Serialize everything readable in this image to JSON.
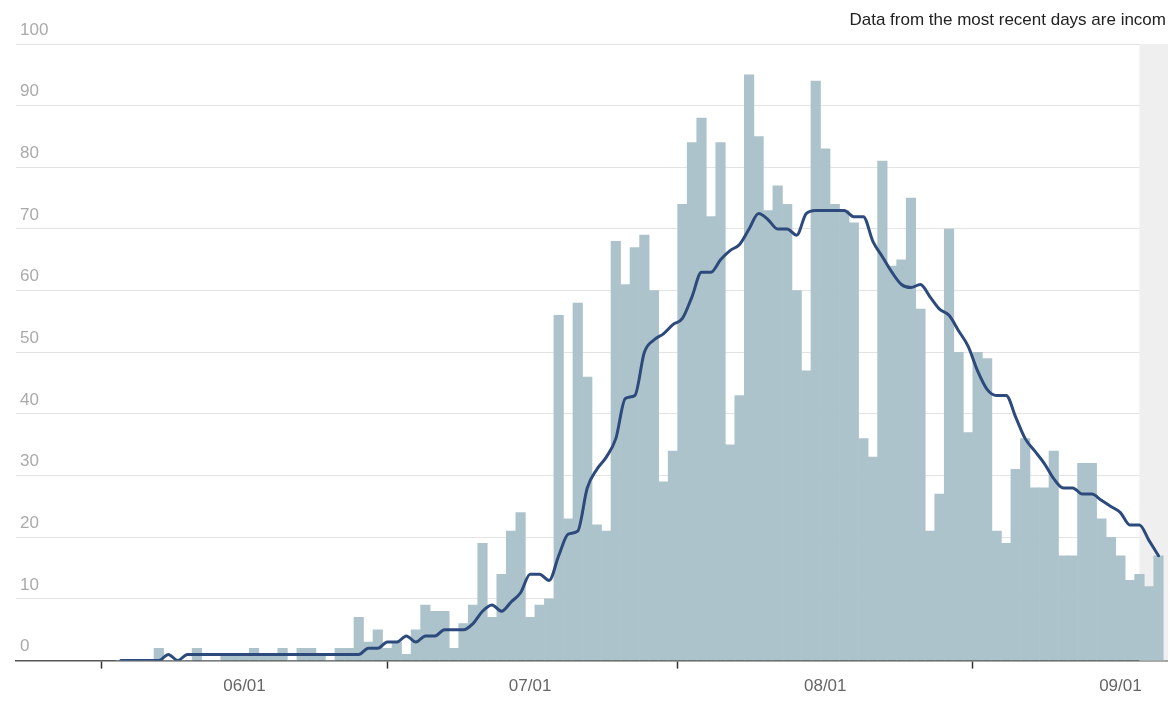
{
  "chart_data": {
    "type": "bar",
    "x": [
      "--05-19",
      "--05-20",
      "--05-21",
      "--05-22",
      "--05-23",
      "--05-24",
      "--05-25",
      "--05-26",
      "--05-27",
      "--05-28",
      "--05-29",
      "--05-30",
      "--05-31",
      "--06-01",
      "--06-02",
      "--06-03",
      "--06-04",
      "--06-05",
      "--06-06",
      "--06-07",
      "--06-08",
      "--06-09",
      "--06-10",
      "--06-11",
      "--06-12",
      "--06-13",
      "--06-14",
      "--06-15",
      "--06-16",
      "--06-17",
      "--06-18",
      "--06-19",
      "--06-20",
      "--06-21",
      "--06-22",
      "--06-23",
      "--06-24",
      "--06-25",
      "--06-26",
      "--06-27",
      "--06-28",
      "--06-29",
      "--06-30",
      "--07-01",
      "--07-02",
      "--07-03",
      "--07-04",
      "--07-05",
      "--07-06",
      "--07-07",
      "--07-08",
      "--07-09",
      "--07-10",
      "--07-11",
      "--07-12",
      "--07-13",
      "--07-14",
      "--07-15",
      "--07-16",
      "--07-17",
      "--07-18",
      "--07-19",
      "--07-20",
      "--07-21",
      "--07-22",
      "--07-23",
      "--07-24",
      "--07-25",
      "--07-26",
      "--07-27",
      "--07-28",
      "--07-29",
      "--07-30",
      "--07-31",
      "--08-01",
      "--08-02",
      "--08-03",
      "--08-04",
      "--08-05",
      "--08-06",
      "--08-07",
      "--08-08",
      "--08-09",
      "--08-10",
      "--08-11",
      "--08-12",
      "--08-13",
      "--08-14",
      "--08-15",
      "--08-16",
      "--08-17",
      "--08-18",
      "--08-19",
      "--08-20",
      "--08-21",
      "--08-22",
      "--08-23",
      "--08-24",
      "--08-25",
      "--08-26",
      "--08-27",
      "--08-28",
      "--08-29",
      "--08-30",
      "--08-31",
      "--09-01",
      "--09-02",
      "--09-03",
      "--09-04",
      "--09-05"
    ],
    "series": [
      {
        "color": "#adc3cc",
        "values": [
          0,
          0,
          0,
          0,
          2,
          0,
          0,
          0,
          2,
          0,
          0,
          1,
          1,
          1,
          2,
          1,
          1,
          2,
          0,
          2,
          2,
          1,
          0,
          2,
          2,
          7,
          3,
          5,
          2,
          3,
          1,
          5,
          9,
          8,
          8,
          2,
          6,
          9,
          19,
          7,
          14,
          21,
          24,
          7,
          9,
          10,
          56,
          23,
          58,
          46,
          22,
          21,
          68,
          61,
          67,
          69,
          60,
          29,
          34,
          74,
          84,
          88,
          72,
          84,
          35,
          43,
          95,
          85,
          73,
          77,
          74,
          60,
          47,
          94,
          83,
          74,
          73,
          71,
          36,
          33,
          81,
          64,
          65,
          75,
          57,
          21,
          27,
          70,
          50,
          37,
          50,
          49,
          21,
          19,
          31,
          36,
          28,
          28,
          34,
          17,
          17,
          32,
          32,
          23,
          20,
          17,
          13,
          14,
          12,
          17
        ]
      },
      {
        "type": "line",
        "color": "#2c4a7c",
        "marker": "none",
        "x": [
          "--05-19",
          "--05-22",
          "--05-23",
          "--05-24",
          "--05-25",
          "--05-26",
          "--06-01",
          "--06-06",
          "--06-12",
          "--06-13",
          "--06-14",
          "--06-15",
          "--06-16",
          "--06-17",
          "--06-18",
          "--06-19",
          "--06-20",
          "--06-21",
          "--06-22",
          "--06-23",
          "--06-24",
          "--06-25",
          "--06-26",
          "--06-27",
          "--06-28",
          "--06-29",
          "--06-30",
          "--07-01",
          "--07-02",
          "--07-03",
          "--07-04",
          "--07-05",
          "--07-06",
          "--07-07",
          "--07-08",
          "--07-09",
          "--07-10",
          "--07-11",
          "--07-12",
          "--07-13",
          "--07-14",
          "--07-15",
          "--07-16",
          "--07-17",
          "--07-18",
          "--07-19",
          "--07-20",
          "--07-21",
          "--07-22",
          "--07-23",
          "--07-24",
          "--07-25",
          "--07-26",
          "--07-27",
          "--07-28",
          "--07-29",
          "--07-30",
          "--07-31",
          "--08-01",
          "--08-02",
          "--08-03",
          "--08-04",
          "--08-05",
          "--08-06",
          "--08-07",
          "--08-08",
          "--08-09",
          "--08-10",
          "--08-11",
          "--08-12",
          "--08-13",
          "--08-14",
          "--08-15",
          "--08-16",
          "--08-17",
          "--08-18",
          "--08-19",
          "--08-20",
          "--08-21",
          "--08-22",
          "--08-23",
          "--08-24",
          "--08-25",
          "--08-26",
          "--08-27",
          "--08-28",
          "--08-29",
          "--08-30",
          "--08-31",
          "--09-01",
          "--09-02",
          "--09-03",
          "--09-04",
          "--09-05"
        ],
        "values": [
          0,
          0,
          0,
          1,
          0,
          1,
          1,
          1,
          1,
          1,
          2,
          2,
          3,
          3,
          4,
          3,
          4,
          4,
          5,
          5,
          5,
          6,
          8,
          9,
          8,
          9.5,
          11,
          14,
          14,
          13,
          17,
          20.5,
          21,
          28,
          31,
          33,
          36,
          42.5,
          43,
          50,
          52,
          53,
          54.5,
          55.5,
          59,
          63,
          63,
          65,
          66.5,
          67.5,
          70,
          72.5,
          71.5,
          70,
          70,
          69,
          72.5,
          73,
          73,
          73,
          73,
          72,
          72,
          68,
          65.5,
          63,
          61,
          60.5,
          61,
          59,
          57,
          56,
          53.5,
          51,
          47,
          44,
          43,
          43,
          39.5,
          36,
          34,
          32,
          29.5,
          28,
          28,
          27,
          27,
          26,
          25,
          24,
          22,
          22,
          19.5,
          17
        ]
      }
    ],
    "xlim": [
      "--05-08",
      "--09-06"
    ],
    "xticks": [
      {
        "value": "--06-01",
        "label": "06/01"
      },
      {
        "value": "--07-01",
        "label": "07/01"
      },
      {
        "value": "--08-01",
        "label": "08/01"
      },
      {
        "value": "--09-01",
        "label": "09/01"
      }
    ],
    "ylim": [
      0,
      100
    ],
    "yticks": [
      0,
      10,
      20,
      30,
      40,
      50,
      60,
      70,
      80,
      90,
      100
    ],
    "grid": "y",
    "legend": false,
    "bands": [
      {
        "axis": "x",
        "from": "--09-03",
        "to": "--09-06",
        "label": "Data from the most recent days are incom",
        "color": "#efefef"
      }
    ]
  }
}
